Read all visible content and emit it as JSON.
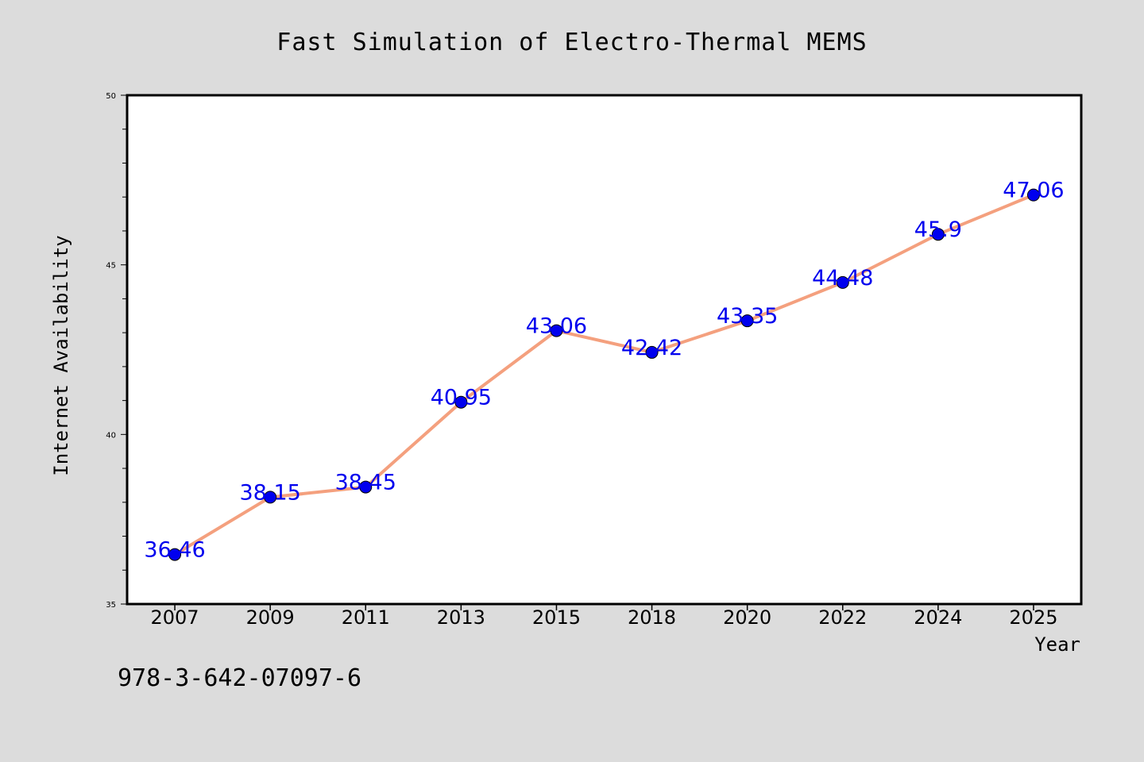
{
  "chart_data": {
    "type": "line",
    "title": "Fast Simulation of Electro-Thermal MEMS",
    "xlabel": "Year",
    "ylabel": "Internet Availability",
    "categories": [
      "2007",
      "2009",
      "2011",
      "2013",
      "2015",
      "2018",
      "2020",
      "2022",
      "2024",
      "2025"
    ],
    "series": [
      {
        "values": [
          36.46,
          38.15,
          38.45,
          40.95,
          43.06,
          42.42,
          43.35,
          44.48,
          45.9,
          47.06
        ],
        "labels": [
          "36.46",
          "38.15",
          "38.45",
          "40.95",
          "43.06",
          "42.42",
          "43.35",
          "44.48",
          "45.9",
          "47.06"
        ],
        "line_color": "#f4a07e",
        "marker_color": "#0000ee",
        "label_color": "#0000ee"
      }
    ],
    "ylim": [
      35,
      50
    ],
    "y_ticks": [
      "35",
      "40",
      "45",
      "50"
    ],
    "grid": false,
    "legend": "none"
  },
  "footer": {
    "isbn": "978-3-642-07097-6"
  }
}
